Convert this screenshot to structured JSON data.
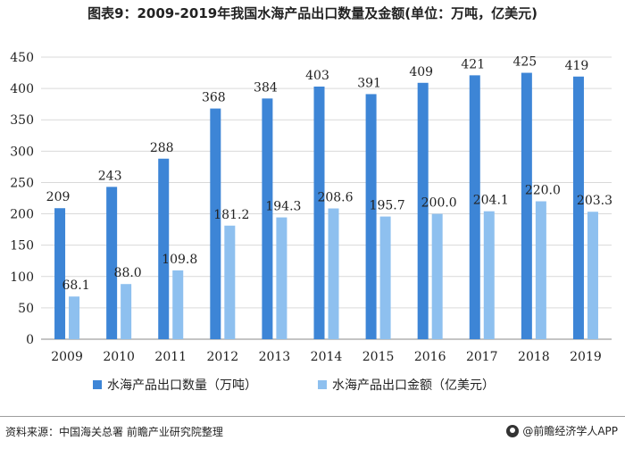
{
  "chart_data": {
    "type": "bar",
    "title": "图表9：2009-2019年我国水海产品出口数量及金额(单位：万吨，亿美元)",
    "categories": [
      "2009",
      "2010",
      "2011",
      "2012",
      "2013",
      "2014",
      "2015",
      "2016",
      "2017",
      "2018",
      "2019"
    ],
    "series": [
      {
        "name": "水海产品出口数量（万吨）",
        "color": "#3d85d6",
        "values": [
          209,
          243,
          288,
          368,
          384,
          403,
          391,
          409,
          421,
          425,
          419
        ],
        "labels": [
          "209",
          "243",
          "288",
          "368",
          "384",
          "403",
          "391",
          "409",
          "421",
          "425",
          "419"
        ]
      },
      {
        "name": "水海产品出口金额（亿美元）",
        "color": "#8ec0ef",
        "values": [
          68.1,
          88.0,
          109.8,
          181.2,
          194.3,
          208.6,
          195.7,
          200.0,
          204.1,
          220.0,
          203.3
        ],
        "labels": [
          "68.1",
          "88.0",
          "109.8",
          "181.2",
          "194.3",
          "208.6",
          "195.7",
          "200.0",
          "204.1",
          "220.0",
          "203.3"
        ]
      }
    ],
    "yticks": [
      "0",
      "50",
      "100",
      "150",
      "200",
      "250",
      "300",
      "350",
      "400",
      "450"
    ],
    "ylim": [
      0,
      450
    ],
    "grid": true,
    "legend_position": "bottom"
  },
  "footer": {
    "source": "资料来源：中国海关总署 前瞻产业研究院整理",
    "brand": "@前瞻经济学人APP"
  }
}
